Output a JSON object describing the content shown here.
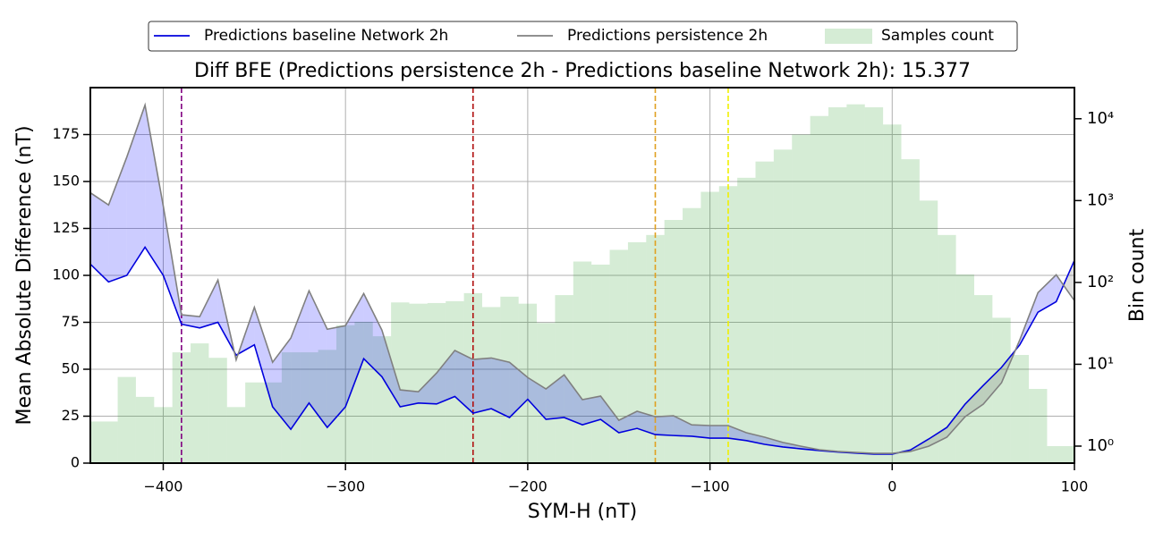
{
  "chart_data": {
    "type": "line",
    "title": "Diff BFE (Predictions persistence 2h - Predictions baseline Network 2h): 15.377",
    "x_label": "SYM-H (nT)",
    "y_label": "Mean Absolute Difference (nT)",
    "y2_label": "Bin count",
    "xlim": [
      -440,
      100
    ],
    "ylim": [
      0,
      200
    ],
    "y2lim": [
      0.62,
      24000
    ],
    "y2_log": true,
    "grid": true,
    "legend": "upper center",
    "xticks": [
      {
        "value": -400,
        "label": "−400"
      },
      {
        "value": -300,
        "label": "−300"
      },
      {
        "value": -200,
        "label": "−200"
      },
      {
        "value": -100,
        "label": "−100"
      },
      0,
      100
    ],
    "yticks": [
      0,
      25,
      50,
      75,
      100,
      125,
      150,
      175
    ],
    "y2ticks": [
      {
        "value": 1,
        "label": "10⁰"
      },
      {
        "value": 10,
        "label": "10¹"
      },
      {
        "value": 100,
        "label": "10²"
      },
      {
        "value": 1000,
        "label": "10³"
      },
      {
        "value": 10000,
        "label": "10⁴"
      }
    ],
    "x": [
      -440,
      -430,
      -420,
      -410,
      -400,
      -390,
      -380,
      -370,
      -360,
      -350,
      -340,
      -330,
      -320,
      -310,
      -300,
      -290,
      -280,
      -270,
      -260,
      -250,
      -240,
      -230,
      -220,
      -210,
      -200,
      -190,
      -180,
      -170,
      -160,
      -150,
      -140,
      -130,
      -120,
      -110,
      -100,
      -90,
      -80,
      -70,
      -60,
      -50,
      -40,
      -30,
      -20,
      -10,
      0,
      10,
      20,
      30,
      40,
      50,
      60,
      70,
      80,
      90,
      100
    ],
    "series": [
      {
        "name": "Predictions baseline Network 2h",
        "color": "#0000dd",
        "values": [
          106,
          96.5,
          100,
          115,
          100,
          74,
          72,
          75,
          57.5,
          63,
          30,
          18,
          32,
          19,
          30,
          55.6,
          46,
          30,
          32,
          31.5,
          35.5,
          26.6,
          29,
          24.3,
          34,
          23.3,
          24.3,
          20.4,
          23.3,
          16.2,
          18.5,
          15.2,
          14.7,
          14.3,
          13.3,
          13.3,
          12,
          10,
          8.6,
          7.6,
          6.7,
          5.9,
          5.3,
          4.8,
          4.8,
          7,
          12.8,
          19,
          31.4,
          41.4,
          51,
          63,
          80.4,
          86,
          108
        ]
      },
      {
        "name": "Predictions persistence 2h",
        "color": "#808080",
        "values": [
          144,
          137.5,
          163,
          190.7,
          137,
          79,
          78,
          97.5,
          55,
          83,
          53.7,
          66.6,
          91.8,
          71.3,
          73.2,
          90.3,
          70.8,
          39,
          38,
          48,
          60,
          55.2,
          56,
          53.7,
          45.6,
          39.5,
          47,
          33.8,
          35.7,
          22.8,
          27.6,
          24.7,
          25.2,
          20.4,
          20,
          20,
          16.2,
          13.8,
          11,
          9,
          7.1,
          6.2,
          5.7,
          5.2,
          5.2,
          6.2,
          9,
          13.8,
          24.7,
          31.4,
          42.8,
          65.6,
          90.8,
          100.3,
          86.5
        ]
      }
    ],
    "fill_between": {
      "above_color": "#0000ff",
      "below_color": "#606060",
      "alpha": 0.2
    },
    "histogram": {
      "name": "Samples count",
      "color": "#2ca02c",
      "alpha": 0.2,
      "axis": "y2",
      "bins": [
        -440,
        -425,
        -415,
        -405,
        -395,
        -385,
        -375,
        -365,
        -355,
        -345,
        -335,
        -325,
        -315,
        -305,
        -295,
        -285,
        -275,
        -265,
        -255,
        -245,
        -235,
        -225,
        -215,
        -205,
        -195,
        -185,
        -175,
        -165,
        -155,
        -145,
        -135,
        -125,
        -115,
        -105,
        -95,
        -85,
        -75,
        -65,
        -55,
        -45,
        -35,
        -25,
        -15,
        -5,
        5,
        15,
        25,
        35,
        45,
        55,
        65,
        75,
        85,
        100
      ],
      "counts": [
        2,
        7,
        4,
        3,
        14,
        18,
        12,
        3,
        6,
        6,
        14,
        14,
        15,
        30,
        33,
        22,
        57,
        55,
        56,
        59,
        74,
        50,
        67,
        55,
        32,
        70,
        180,
        165,
        250,
        310,
        380,
        580,
        810,
        1280,
        1500,
        1900,
        3000,
        4200,
        6400,
        10800,
        13800,
        15000,
        13800,
        8500,
        3200,
        1000,
        380,
        125,
        70,
        37,
        13,
        5,
        1
      ]
    },
    "vlines": [
      {
        "x": -390,
        "color": "#800080"
      },
      {
        "x": -230,
        "color": "#b01010"
      },
      {
        "x": -130,
        "color": "#e0a020"
      },
      {
        "x": -90,
        "color": "#f0f000"
      }
    ]
  }
}
